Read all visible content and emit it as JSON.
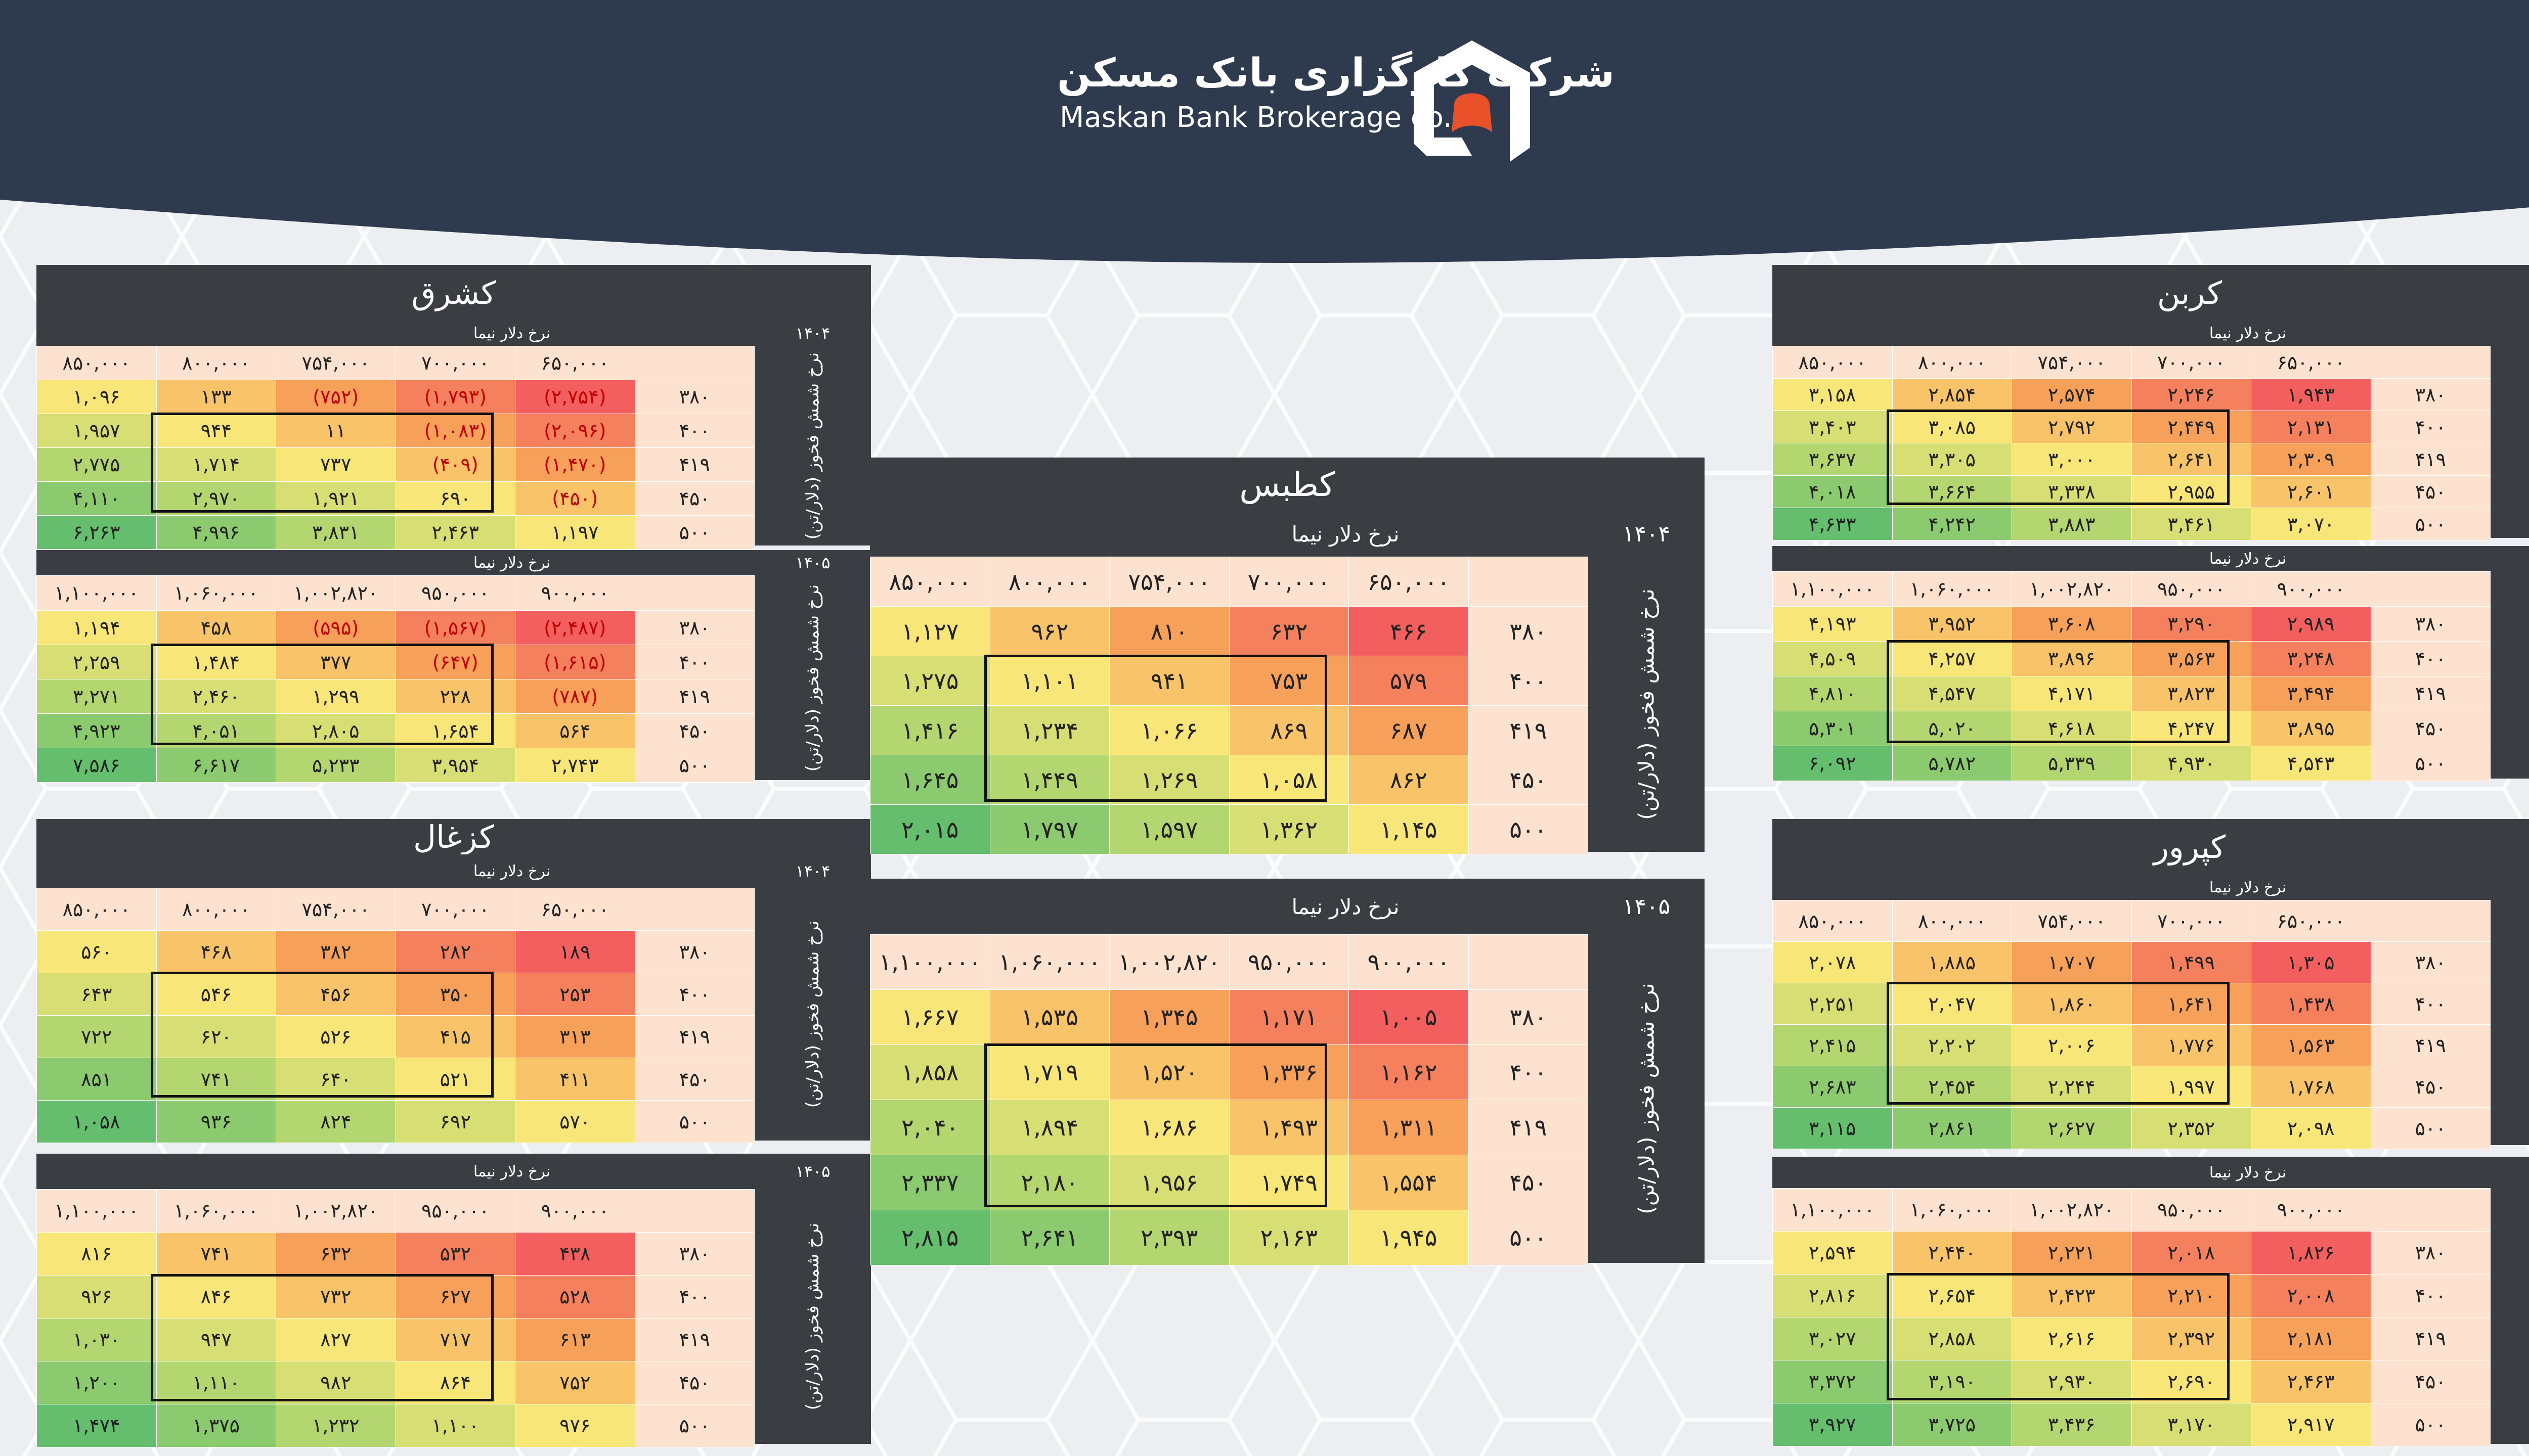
{
  "header": {
    "company_fa": "شرکت کارگزاری بانک مسکن",
    "company_en": "Maskan Bank Brokerage co.",
    "logo_icon": "house-logo-icon",
    "colors": {
      "header_bg": "#2e3a4e",
      "logo_accent": "#e8512a"
    }
  },
  "labels": {
    "nima": "نرخ دلار نیما",
    "side": "نرخ شمش فخوز (دلار/تن)",
    "year_1404": "۱۴۰۴",
    "year_1405": "۱۴۰۵"
  },
  "row_labels": [
    "۳۸۰",
    "۴۰۰",
    "۴۱۹",
    "۴۵۰",
    "۵۰۰"
  ],
  "cols_1404": [
    "۸۵۰,۰۰۰",
    "۸۰۰,۰۰۰",
    "۷۵۴,۰۰۰",
    "۷۰۰,۰۰۰",
    "۶۵۰,۰۰۰"
  ],
  "cols_1405": [
    "۱,۱۰۰,۰۰۰",
    "۱,۰۶۰,۰۰۰",
    "۱,۰۰۲,۸۲۰",
    "۹۵۰,۰۰۰",
    "۹۰۰,۰۰۰"
  ],
  "panels": {
    "kashargh": {
      "title": "کشرق",
      "t1404": [
        [
          "۱,۰۹۶",
          "۱۳۳",
          "(۷۵۲)",
          "(۱,۷۹۳)",
          "(۲,۷۵۴)"
        ],
        [
          "۱,۹۵۷",
          "۹۴۴",
          "۱۱",
          "(۱,۰۸۳)",
          "(۲,۰۹۶)"
        ],
        [
          "۲,۷۷۵",
          "۱,۷۱۴",
          "۷۳۷",
          "(۴۰۹)",
          "(۱,۴۷۰)"
        ],
        [
          "۴,۱۱۰",
          "۲,۹۷۰",
          "۱,۹۲۱",
          "۶۹۰",
          "(۴۵۰)"
        ],
        [
          "۶,۲۶۳",
          "۴,۹۹۶",
          "۳,۸۳۱",
          "۲,۴۶۳",
          "۱,۱۹۷"
        ]
      ],
      "t1405": [
        [
          "۱,۱۹۴",
          "۴۵۸",
          "(۵۹۵)",
          "(۱,۵۶۷)",
          "(۲,۴۸۷)"
        ],
        [
          "۲,۲۵۹",
          "۱,۴۸۴",
          "۳۷۷",
          "(۶۴۷)",
          "(۱,۶۱۵)"
        ],
        [
          "۳,۲۷۱",
          "۲,۴۶۰",
          "۱,۲۹۹",
          "۲۲۸",
          "(۷۸۷)"
        ],
        [
          "۴,۹۲۳",
          "۴,۰۵۱",
          "۲,۸۰۵",
          "۱,۶۵۴",
          "۵۶۴"
        ],
        [
          "۷,۵۸۶",
          "۶,۶۱۷",
          "۵,۲۳۳",
          "۳,۹۵۴",
          "۲,۷۴۳"
        ]
      ]
    },
    "kazghal": {
      "title": "کزغال",
      "t1404": [
        [
          "۵۶۰",
          "۴۶۸",
          "۳۸۲",
          "۲۸۲",
          "۱۸۹"
        ],
        [
          "۶۴۳",
          "۵۴۶",
          "۴۵۶",
          "۳۵۰",
          "۲۵۳"
        ],
        [
          "۷۲۲",
          "۶۲۰",
          "۵۲۶",
          "۴۱۵",
          "۳۱۳"
        ],
        [
          "۸۵۱",
          "۷۴۱",
          "۶۴۰",
          "۵۲۱",
          "۴۱۱"
        ],
        [
          "۱,۰۵۸",
          "۹۳۶",
          "۸۲۴",
          "۶۹۲",
          "۵۷۰"
        ]
      ],
      "t1405": [
        [
          "۸۱۶",
          "۷۴۱",
          "۶۳۲",
          "۵۳۲",
          "۴۳۸"
        ],
        [
          "۹۲۶",
          "۸۴۶",
          "۷۳۲",
          "۶۲۷",
          "۵۲۸"
        ],
        [
          "۱,۰۳۰",
          "۹۴۷",
          "۸۲۷",
          "۷۱۷",
          "۶۱۳"
        ],
        [
          "۱,۲۰۰",
          "۱,۱۱۰",
          "۹۸۲",
          "۸۶۴",
          "۷۵۲"
        ],
        [
          "۱,۴۷۴",
          "۱,۳۷۵",
          "۱,۲۳۲",
          "۱,۱۰۰",
          "۹۷۶"
        ]
      ]
    },
    "katbas": {
      "title": "کطبس",
      "t1404": [
        [
          "۱,۱۲۷",
          "۹۶۲",
          "۸۱۰",
          "۶۳۲",
          "۴۶۶"
        ],
        [
          "۱,۲۷۵",
          "۱,۱۰۱",
          "۹۴۱",
          "۷۵۳",
          "۵۷۹"
        ],
        [
          "۱,۴۱۶",
          "۱,۲۳۴",
          "۱,۰۶۶",
          "۸۶۹",
          "۶۸۷"
        ],
        [
          "۱,۶۴۵",
          "۱,۴۴۹",
          "۱,۲۶۹",
          "۱,۰۵۸",
          "۸۶۲"
        ],
        [
          "۲,۰۱۵",
          "۱,۷۹۷",
          "۱,۵۹۷",
          "۱,۳۶۲",
          "۱,۱۴۵"
        ]
      ],
      "t1405": [
        [
          "۱,۶۶۷",
          "۱,۵۳۵",
          "۱,۳۴۵",
          "۱,۱۷۱",
          "۱,۰۰۵"
        ],
        [
          "۱,۸۵۸",
          "۱,۷۱۹",
          "۱,۵۲۰",
          "۱,۳۳۶",
          "۱,۱۶۲"
        ],
        [
          "۲,۰۴۰",
          "۱,۸۹۴",
          "۱,۶۸۶",
          "۱,۴۹۳",
          "۱,۳۱۱"
        ],
        [
          "۲,۳۳۷",
          "۲,۱۸۰",
          "۱,۹۵۶",
          "۱,۷۴۹",
          "۱,۵۵۴"
        ],
        [
          "۲,۸۱۵",
          "۲,۶۴۱",
          "۲,۳۹۳",
          "۲,۱۶۳",
          "۱,۹۴۵"
        ]
      ]
    },
    "karbon": {
      "title": "کربن",
      "t1404": [
        [
          "۳,۱۵۸",
          "۲,۸۵۴",
          "۲,۵۷۴",
          "۲,۲۴۶",
          "۱,۹۴۳"
        ],
        [
          "۳,۴۰۳",
          "۳,۰۸۵",
          "۲,۷۹۲",
          "۲,۴۴۹",
          "۲,۱۳۱"
        ],
        [
          "۳,۶۳۷",
          "۳,۳۰۵",
          "۳,۰۰۰",
          "۲,۶۴۱",
          "۲,۳۰۹"
        ],
        [
          "۴,۰۱۸",
          "۳,۶۶۴",
          "۳,۳۳۸",
          "۲,۹۵۵",
          "۲,۶۰۱"
        ],
        [
          "۴,۶۳۳",
          "۴,۲۴۲",
          "۳,۸۸۳",
          "۳,۴۶۱",
          "۳,۰۷۰"
        ]
      ],
      "t1405": [
        [
          "۴,۱۹۳",
          "۳,۹۵۲",
          "۳,۶۰۸",
          "۳,۲۹۰",
          "۲,۹۸۹"
        ],
        [
          "۴,۵۰۹",
          "۴,۲۵۷",
          "۳,۸۹۶",
          "۳,۵۶۳",
          "۳,۲۴۸"
        ],
        [
          "۴,۸۱۰",
          "۴,۵۴۷",
          "۴,۱۷۱",
          "۳,۸۲۳",
          "۳,۴۹۴"
        ],
        [
          "۵,۳۰۱",
          "۵,۰۲۰",
          "۴,۶۱۸",
          "۴,۲۴۷",
          "۳,۸۹۵"
        ],
        [
          "۶,۰۹۲",
          "۵,۷۸۲",
          "۵,۳۳۹",
          "۴,۹۳۰",
          "۴,۵۴۳"
        ]
      ]
    },
    "kapror": {
      "title": "کپرور",
      "t1404": [
        [
          "۲,۰۷۸",
          "۱,۸۸۵",
          "۱,۷۰۷",
          "۱,۴۹۹",
          "۱,۳۰۵"
        ],
        [
          "۲,۲۵۱",
          "۲,۰۴۷",
          "۱,۸۶۰",
          "۱,۶۴۱",
          "۱,۴۳۸"
        ],
        [
          "۲,۴۱۵",
          "۲,۲۰۲",
          "۲,۰۰۶",
          "۱,۷۷۶",
          "۱,۵۶۳"
        ],
        [
          "۲,۶۸۳",
          "۲,۴۵۴",
          "۲,۲۴۴",
          "۱,۹۹۷",
          "۱,۷۶۸"
        ],
        [
          "۳,۱۱۵",
          "۲,۸۶۱",
          "۲,۶۲۷",
          "۲,۳۵۲",
          "۲,۰۹۸"
        ]
      ],
      "t1405": [
        [
          "۲,۵۹۴",
          "۲,۴۴۰",
          "۲,۲۲۱",
          "۲,۰۱۸",
          "۱,۸۲۶"
        ],
        [
          "۲,۸۱۶",
          "۲,۶۵۴",
          "۲,۴۲۳",
          "۲,۲۱۰",
          "۲,۰۰۸"
        ],
        [
          "۳,۰۲۷",
          "۲,۸۵۸",
          "۲,۶۱۶",
          "۲,۳۹۲",
          "۲,۱۸۱"
        ],
        [
          "۳,۳۷۲",
          "۳,۱۹۰",
          "۲,۹۳۰",
          "۲,۶۹۰",
          "۲,۴۶۳"
        ],
        [
          "۳,۹۲۷",
          "۳,۷۲۵",
          "۳,۴۳۶",
          "۳,۱۷۰",
          "۲,۹۱۷"
        ]
      ]
    }
  }
}
